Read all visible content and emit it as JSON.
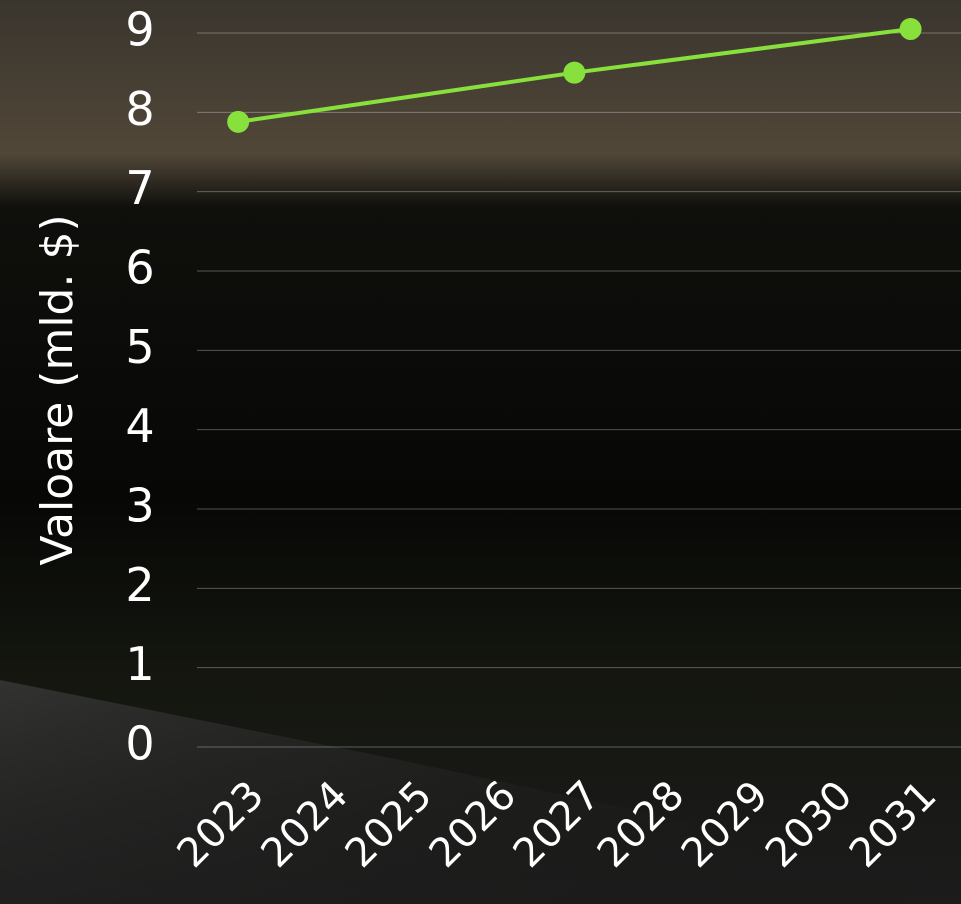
{
  "chart_data": {
    "type": "line",
    "y_label": "Valoare (mld. $)",
    "x": [
      2023,
      2027,
      2031
    ],
    "series": [
      {
        "color": "#88e03c",
        "values": [
          7.88,
          8.5,
          9.05
        ]
      }
    ],
    "xlim": [
      2022.51,
      2031.6
    ],
    "xticks": [
      2023,
      2024,
      2025,
      2026,
      2027,
      2028,
      2029,
      2030,
      2031
    ],
    "ylim": [
      0,
      9
    ],
    "yticks": [
      0,
      1,
      2,
      3,
      4,
      5,
      6,
      7,
      8,
      9
    ],
    "grid": true
  }
}
